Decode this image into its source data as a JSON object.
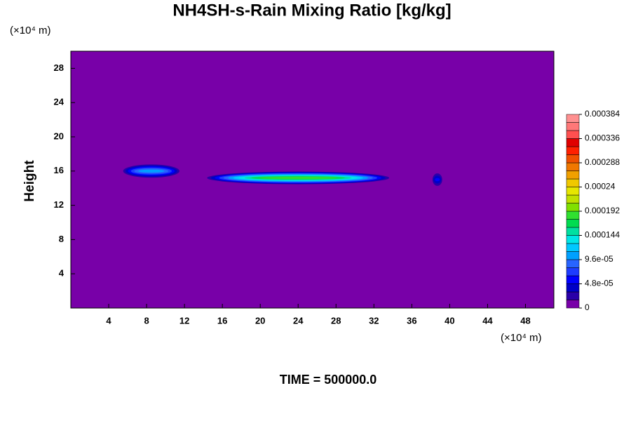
{
  "chart_data": {
    "type": "contour",
    "title": "NH4SH-s-Rain Mixing Ratio [kg/kg]",
    "y_label": "Height",
    "unit_label": "(×10⁴ m)",
    "time_label": "TIME = 500000.0",
    "xlim": [
      0,
      51
    ],
    "ylim": [
      0,
      30
    ],
    "xticks": [
      4,
      8,
      12,
      16,
      20,
      24,
      28,
      32,
      36,
      40,
      44,
      48
    ],
    "yticks": [
      4,
      8,
      12,
      16,
      20,
      24,
      28
    ],
    "background_color": "#7800a8",
    "colorbar": {
      "levels": [
        0,
        1.6e-05,
        3.2e-05,
        4.8e-05,
        6.4e-05,
        8e-05,
        9.6e-05,
        0.000112,
        0.000128,
        0.000144,
        0.00016,
        0.000176,
        0.000192,
        0.000208,
        0.000224,
        0.00024,
        0.000256,
        0.000272,
        0.000288,
        0.000304,
        0.00032,
        0.000336,
        0.000352,
        0.000368,
        0.000384
      ],
      "colors": [
        "#7800a8",
        "#2a00a8",
        "#0000c8",
        "#0000ff",
        "#1e3cff",
        "#2864ff",
        "#00a0ff",
        "#00c8ff",
        "#00e6e6",
        "#00e0a0",
        "#00dc50",
        "#30e030",
        "#80e000",
        "#c0e000",
        "#e6e600",
        "#f0c800",
        "#f0a000",
        "#f07800",
        "#f05000",
        "#ff2000",
        "#e00000",
        "#ff5050",
        "#ff7878",
        "#ff9090"
      ],
      "ticks": [
        0,
        {
          "value": 4.8e-05,
          "label": "4.8e-05"
        },
        {
          "value": 9.6e-05,
          "label": "9.6e-05"
        },
        0.000144,
        0.000192,
        0.00024,
        0.000288,
        0.000336,
        0.000384
      ]
    },
    "features": [
      {
        "x": 8.5,
        "y": 16,
        "rx": 3.2,
        "ry": 0.9,
        "peak": 0.0001
      },
      {
        "x": 24,
        "y": 15.2,
        "rx": 10,
        "ry": 0.8,
        "peak": 0.00018
      },
      {
        "x": 38.7,
        "y": 15,
        "rx": 0.6,
        "ry": 1,
        "peak": 5e-05
      }
    ]
  }
}
